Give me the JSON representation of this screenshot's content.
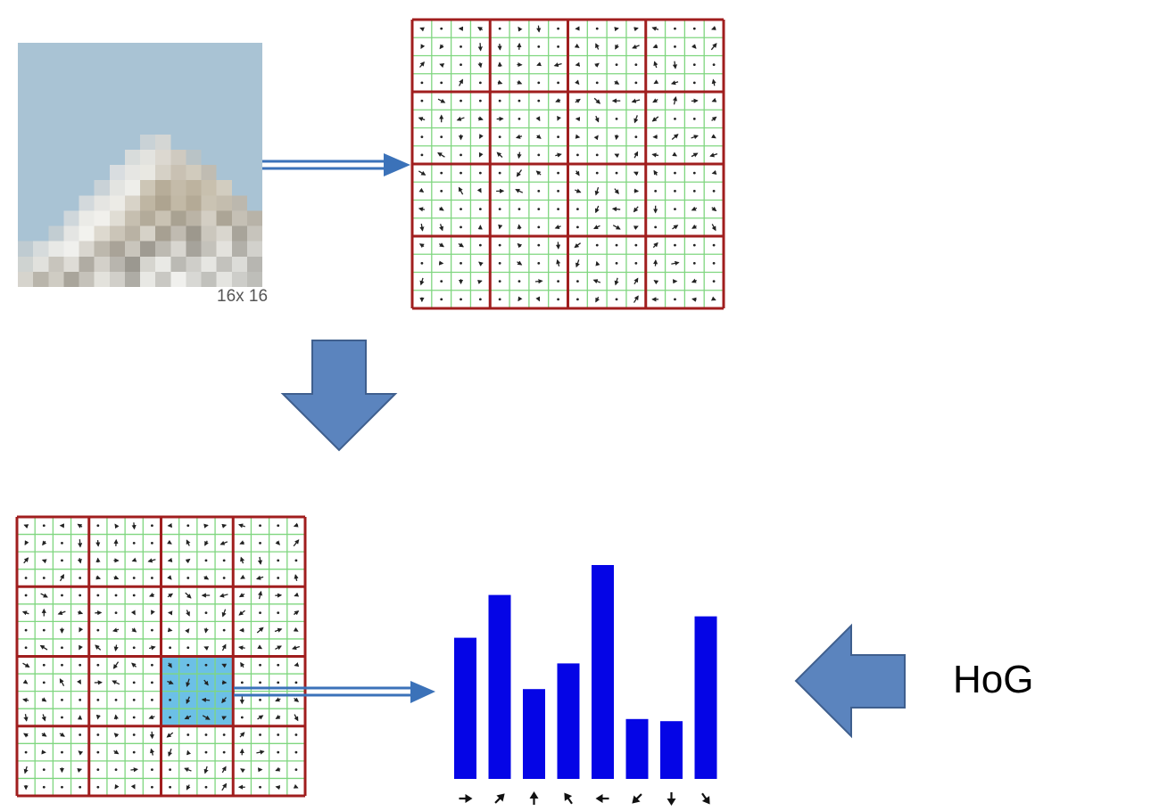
{
  "input_patch": {
    "caption": "16x 16",
    "pixel_rows": [
      [
        "#a9c3d4",
        "#a9c3d4",
        "#a9c3d4",
        "#a9c3d4",
        "#a9c3d4",
        "#a9c3d4",
        "#a9c3d4",
        "#a9c3d4",
        "#a9c3d4",
        "#a9c3d4",
        "#a9c3d4",
        "#a9c3d4",
        "#a9c3d4",
        "#a9c3d4",
        "#a9c3d4",
        "#a9c3d4"
      ],
      [
        "#a9c3d4",
        "#a9c3d4",
        "#a9c3d4",
        "#a9c3d4",
        "#a9c3d4",
        "#a9c3d4",
        "#a9c3d4",
        "#a9c3d4",
        "#a9c3d4",
        "#a9c3d4",
        "#a9c3d4",
        "#a9c3d4",
        "#a9c3d4",
        "#a9c3d4",
        "#a9c3d4",
        "#a9c3d4"
      ],
      [
        "#a9c3d4",
        "#a9c3d4",
        "#a9c3d4",
        "#a9c3d4",
        "#a9c3d4",
        "#a9c3d4",
        "#a9c3d4",
        "#a9c3d4",
        "#a9c3d4",
        "#a9c3d4",
        "#a9c3d4",
        "#a9c3d4",
        "#a9c3d4",
        "#a9c3d4",
        "#a9c3d4",
        "#a9c3d4"
      ],
      [
        "#a9c3d4",
        "#a9c3d4",
        "#a9c3d4",
        "#a9c3d4",
        "#a9c3d4",
        "#a9c3d4",
        "#a9c3d4",
        "#a9c3d4",
        "#a9c3d4",
        "#a9c3d4",
        "#a9c3d4",
        "#a9c3d4",
        "#a9c3d4",
        "#a9c3d4",
        "#a9c3d4",
        "#a9c3d4"
      ],
      [
        "#a9c3d4",
        "#a9c3d4",
        "#a9c3d4",
        "#a9c3d4",
        "#a9c3d4",
        "#a9c3d4",
        "#a9c3d4",
        "#a9c3d4",
        "#a9c3d4",
        "#a9c3d4",
        "#a9c3d4",
        "#a9c3d4",
        "#a9c3d4",
        "#a9c3d4",
        "#a9c3d4",
        "#a9c3d4"
      ],
      [
        "#a9c3d4",
        "#a9c3d4",
        "#a9c3d4",
        "#a9c3d4",
        "#a9c3d4",
        "#a9c3d4",
        "#a9c3d4",
        "#a9c3d4",
        "#a9c3d4",
        "#a9c3d4",
        "#a9c3d4",
        "#a9c3d4",
        "#a9c3d4",
        "#a9c3d4",
        "#a9c3d4",
        "#a9c3d4"
      ],
      [
        "#a9c3d4",
        "#a9c3d4",
        "#a9c3d4",
        "#a9c3d4",
        "#a9c3d4",
        "#a9c3d4",
        "#a9c3d4",
        "#a9c3d4",
        "#c9d2d6",
        "#d4d6d4",
        "#a9c3d4",
        "#a9c3d4",
        "#a9c3d4",
        "#a9c3d4",
        "#a9c3d4",
        "#a9c3d4"
      ],
      [
        "#a9c3d4",
        "#a9c3d4",
        "#a9c3d4",
        "#a9c3d4",
        "#a9c3d4",
        "#a9c3d4",
        "#a9c3d4",
        "#d8dcdb",
        "#e3e3df",
        "#dcd8d0",
        "#cfcac0",
        "#b9c3c6",
        "#a9c3d4",
        "#a9c3d4",
        "#a9c3d4",
        "#a9c3d4"
      ],
      [
        "#a9c3d4",
        "#a9c3d4",
        "#a9c3d4",
        "#a9c3d4",
        "#a9c3d4",
        "#a9c3d4",
        "#d9dde0",
        "#e6e6e3",
        "#e9e8e2",
        "#d6d1c6",
        "#c9c1b3",
        "#d1cbbd",
        "#c0bcb2",
        "#a9c3d4",
        "#a9c3d4",
        "#a9c3d4"
      ],
      [
        "#a9c3d4",
        "#a9c3d4",
        "#a9c3d4",
        "#a9c3d4",
        "#a9c3d4",
        "#c9d2d7",
        "#e3e4e1",
        "#eeeeea",
        "#cdc6b6",
        "#b7ad99",
        "#c4bba9",
        "#bdb39f",
        "#c8c0ae",
        "#d2cdc0",
        "#a9c3d4",
        "#a9c3d4"
      ],
      [
        "#a9c3d4",
        "#a9c3d4",
        "#a9c3d4",
        "#a9c3d4",
        "#d3d9dc",
        "#e5e5e2",
        "#ecebe6",
        "#d8d3c8",
        "#bfb6a3",
        "#aea490",
        "#c2b9a6",
        "#b4aa96",
        "#cac3b3",
        "#c4bdae",
        "#bcb8ae",
        "#a9c3d4"
      ],
      [
        "#a9c3d4",
        "#a9c3d4",
        "#a9c3d4",
        "#cfd7db",
        "#ebebe7",
        "#f1f0ec",
        "#e0ddd4",
        "#c6bfb0",
        "#b3ab9a",
        "#c9c2b3",
        "#a9a292",
        "#bbb4a6",
        "#d3cec3",
        "#aca596",
        "#c5c0b5",
        "#b8b3a8"
      ],
      [
        "#a9c3d4",
        "#a9c3d4",
        "#c2cdd2",
        "#e4e5e3",
        "#f2f2ee",
        "#ddd9cf",
        "#cbc5b8",
        "#b9b2a4",
        "#d6d2c8",
        "#a7a092",
        "#c0bbb1",
        "#9d988d",
        "#cbc7bd",
        "#d9d6ce",
        "#a8a49a",
        "#c7c4bc"
      ],
      [
        "#bfcbd1",
        "#d6dbdc",
        "#e8e9e6",
        "#f0f0ed",
        "#d9d6cf",
        "#bdb8ad",
        "#a9a398",
        "#c9c5bc",
        "#9f9b92",
        "#bdbab2",
        "#d8d6d0",
        "#a6a39b",
        "#c4c2bb",
        "#e3e2dd",
        "#b2b0a9",
        "#d2d1cc"
      ],
      [
        "#cfd3d1",
        "#e1e1dd",
        "#c8c5bd",
        "#dedcd6",
        "#b0aca3",
        "#d3d0c9",
        "#b8b5ae",
        "#9b9890",
        "#d6d5cf",
        "#e9e9e5",
        "#bbbab4",
        "#cfcec9",
        "#e6e6e2",
        "#c3c2bd",
        "#dcdcd8",
        "#b7b6b1"
      ],
      [
        "#d6d4cd",
        "#b9b5ab",
        "#cfccc3",
        "#a9a59b",
        "#c5c2ba",
        "#e3e2dc",
        "#d1cfc9",
        "#aeaca5",
        "#e8e8e4",
        "#c9c8c3",
        "#f0f0ed",
        "#d8d8d4",
        "#c1c1bc",
        "#e4e4e0",
        "#cdcdc9",
        "#bebeb9"
      ]
    ]
  },
  "gradient_grid": {
    "frame_color": "#a01e1e",
    "grid_color": "#7fd67f",
    "highlight_color": "#6cc0e6",
    "highlight_cell": [
      2,
      2
    ]
  },
  "arrow_color": "#3b72b9",
  "big_arrow_fill": "#5b84be",
  "big_arrow_stroke": "#3f5f8e",
  "histogram": {
    "bar_color": "#0505e6",
    "values": [
      0.66,
      0.86,
      0.42,
      0.54,
      1.0,
      0.28,
      0.27,
      0.76
    ],
    "direction_icons": [
      "arrow-east-icon",
      "arrow-northeast-icon",
      "arrow-north-icon",
      "arrow-northwest-icon",
      "arrow-west-icon",
      "arrow-southwest-icon",
      "arrow-south-icon",
      "arrow-southeast-icon"
    ]
  },
  "label": "HoG"
}
